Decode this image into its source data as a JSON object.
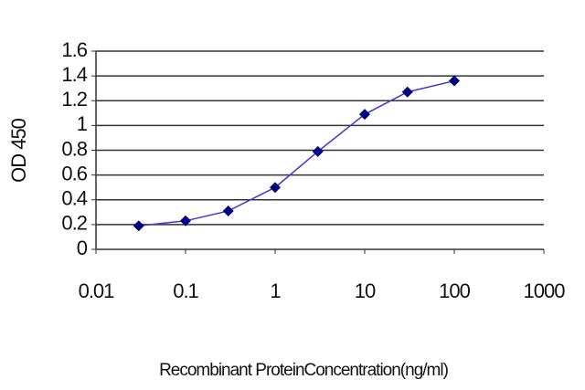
{
  "chart_data": {
    "type": "line",
    "xlabel": "Recombinant ProteinConcentration(ng/ml)",
    "ylabel": "OD 450",
    "x": [
      0.03,
      0.1,
      0.3,
      1,
      3,
      10,
      30,
      100
    ],
    "series": [
      {
        "color": "#000080",
        "line_color": "#3a3ad0",
        "values": [
          0.19,
          0.23,
          0.31,
          0.5,
          0.79,
          1.09,
          1.27,
          1.36
        ]
      }
    ],
    "xscale": "log",
    "xlim": [
      0.01,
      1000
    ],
    "xticks": [
      0.01,
      0.1,
      1,
      10,
      100,
      1000
    ],
    "ylim": [
      0,
      1.6
    ],
    "yticks": [
      0,
      0.2,
      0.4,
      0.6,
      0.8,
      1,
      1.2,
      1.4,
      1.6
    ],
    "grid": true
  }
}
